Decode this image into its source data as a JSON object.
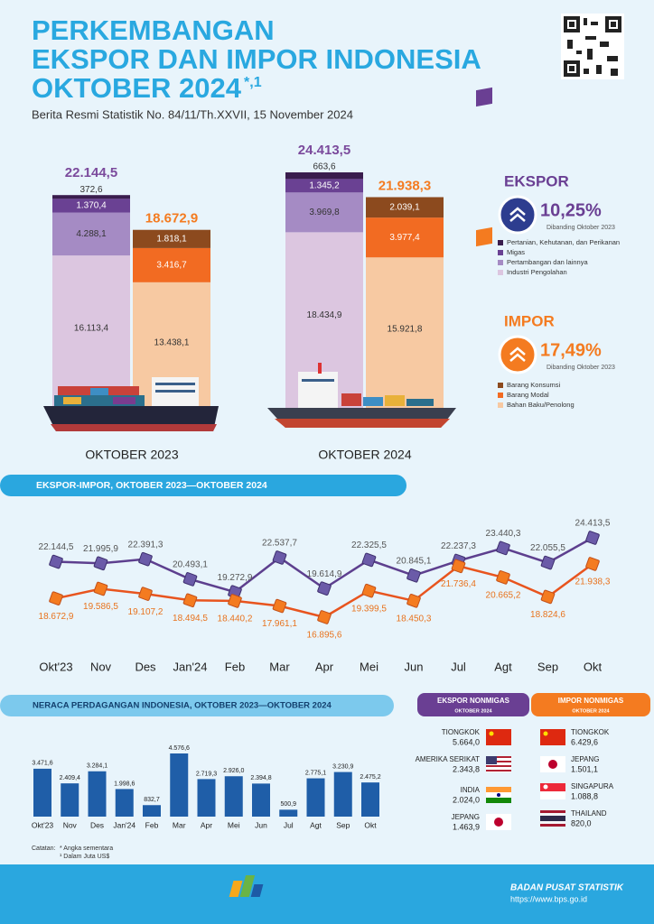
{
  "header": {
    "title_lines": [
      "PERKEMBANGAN",
      "EKSPOR DAN IMPOR INDONESIA",
      "OKTOBER 2024"
    ],
    "title_mark": "*,1",
    "subtitle": "Berita Resmi Statistik No. 84/11/Th.XXVII, 15 November 2024"
  },
  "overview": {
    "type": "stacked-bar",
    "ekspor_series": [
      {
        "name": "Industri Pengolahan",
        "color": "#dcc6e0"
      },
      {
        "name": "Pertambangan dan lainnya",
        "color": "#a58bc4"
      },
      {
        "name": "Migas",
        "color": "#6a4193"
      },
      {
        "name": "Pertanian, Kehutanan, dan Perikanan",
        "color": "#3a1d4d"
      }
    ],
    "impor_series": [
      {
        "name": "Bahan Baku/Penolong",
        "color": "#f7c9a2"
      },
      {
        "name": "Barang Modal",
        "color": "#f26b22"
      },
      {
        "name": "Barang Konsumsi",
        "color": "#8c4a1e"
      }
    ],
    "periods": [
      {
        "label": "OKTOBER 2023",
        "ekspor": {
          "values": [
            16113.4,
            4288.1,
            1370.4,
            372.6
          ],
          "value_labels": [
            "16.113,4",
            "4.288,1",
            "1.370,4",
            "372,6"
          ],
          "total": {
            "value": 22144.5,
            "label": "22.144,5"
          }
        },
        "impor": {
          "values": [
            13438.1,
            3416.7,
            1818.1
          ],
          "value_labels": [
            "13.438,1",
            "3.416,7",
            "1.818,1"
          ],
          "total": {
            "value": 18672.9,
            "label": "18.672,9"
          }
        }
      },
      {
        "label": "OKTOBER 2024",
        "ekspor": {
          "values": [
            18434.9,
            3969.8,
            1345.2,
            663.6
          ],
          "value_labels": [
            "18.434,9",
            "3.969,8",
            "1.345,2",
            "663,6"
          ],
          "total": {
            "value": 24413.5,
            "label": "24.413,5"
          }
        },
        "impor": {
          "values": [
            15921.8,
            3977.4,
            2039.1
          ],
          "value_labels": [
            "15.921,8",
            "3.977,4",
            "2.039,1"
          ],
          "total": {
            "value": 21938.3,
            "label": "21.938,3"
          }
        }
      }
    ],
    "ekspor_badge": {
      "title": "EKSPOR",
      "change": "10,25%",
      "note": "Dibanding Oktober 2023"
    },
    "impor_badge": {
      "title": "IMPOR",
      "change": "17,49%",
      "note": "Dibanding Oktober 2023"
    }
  },
  "trend": {
    "type": "line",
    "title": "EKSPOR-IMPOR, OKTOBER 2023—OKTOBER 2024",
    "categories": [
      "Okt'23",
      "Nov",
      "Des",
      "Jan'24",
      "Feb",
      "Mar",
      "Apr",
      "Mei",
      "Jun",
      "Jul",
      "Agt",
      "Sep",
      "Okt"
    ],
    "series": [
      {
        "name": "Ekspor",
        "color": "#5d3f8e",
        "values": [
          22144.5,
          21995.9,
          22391.3,
          20493.1,
          19272.9,
          22537.7,
          19614.9,
          22325.5,
          20845.1,
          22237.3,
          23440.3,
          22055.5,
          24413.5
        ],
        "value_labels": [
          "22.144,5",
          "21.995,9",
          "22.391,3",
          "20.493,1",
          "19.272,9",
          "22.537,7",
          "19.614,9",
          "22.325,5",
          "20.845,1",
          "22.237,3",
          "23.440,3",
          "22.055,5",
          "24.413,5"
        ]
      },
      {
        "name": "Impor",
        "color": "#e8541e",
        "values": [
          18672.9,
          19586.5,
          19107.2,
          18494.5,
          18440.2,
          17961.1,
          16895.6,
          19399.5,
          18450.3,
          21736.4,
          20665.2,
          18824.6,
          21938.3
        ],
        "value_labels": [
          "18.672,9",
          "19.586,5",
          "19.107,2",
          "18.494,5",
          "18.440,2",
          "17.961,1",
          "16.895,6",
          "19.399,5",
          "18.450,3",
          "21.736,4",
          "20.665,2",
          "18.824,6",
          "21.938,3"
        ]
      }
    ]
  },
  "balance": {
    "type": "bar",
    "title": "NERACA PERDAGANGAN INDONESIA, OKTOBER 2023—OKTOBER 2024",
    "categories": [
      "Okt'23",
      "Nov",
      "Des",
      "Jan'24",
      "Feb",
      "Mar",
      "Apr",
      "Mei",
      "Jun",
      "Jul",
      "Agt",
      "Sep",
      "Okt"
    ],
    "values": [
      3471.6,
      2409.4,
      3284.1,
      1998.6,
      832.7,
      4576.6,
      2719.3,
      2926.0,
      2394.8,
      500.9,
      2775.1,
      3230.9,
      2475.2
    ],
    "value_labels": [
      "3.471,6",
      "2.409,4",
      "3.284,1",
      "1.998,6",
      "832,7",
      "4.576,6",
      "2.719,3",
      "2.926,0",
      "2.394,8",
      "500,9",
      "2.775,1",
      "3.230,9",
      "2.475,2"
    ],
    "color": "#1f5ea8"
  },
  "nonmigas": {
    "ekspor": {
      "title": "EKSPOR NONMIGAS",
      "period": "OKTOBER 2024",
      "countries": [
        {
          "name": "TIONGKOK",
          "value": "5.664,0"
        },
        {
          "name": "AMERIKA SERIKAT",
          "value": "2.343,8"
        },
        {
          "name": "INDIA",
          "value": "2.024,0"
        },
        {
          "name": "JEPANG",
          "value": "1.463,9"
        }
      ]
    },
    "impor": {
      "title": "IMPOR NONMIGAS",
      "period": "OKTOBER 2024",
      "countries": [
        {
          "name": "TIONGKOK",
          "value": "6.429,6"
        },
        {
          "name": "JEPANG",
          "value": "1.501,1"
        },
        {
          "name": "SINGAPURA",
          "value": "1.088,8"
        },
        {
          "name": "THAILAND",
          "value": "820,0"
        }
      ]
    }
  },
  "notes": {
    "title": "Catatan:",
    "items": [
      "* Angka sementara",
      "¹ Dalam Juta US$"
    ]
  },
  "footer": {
    "org": "BADAN PUSAT STATISTIK",
    "url": "https://www.bps.go.id"
  }
}
